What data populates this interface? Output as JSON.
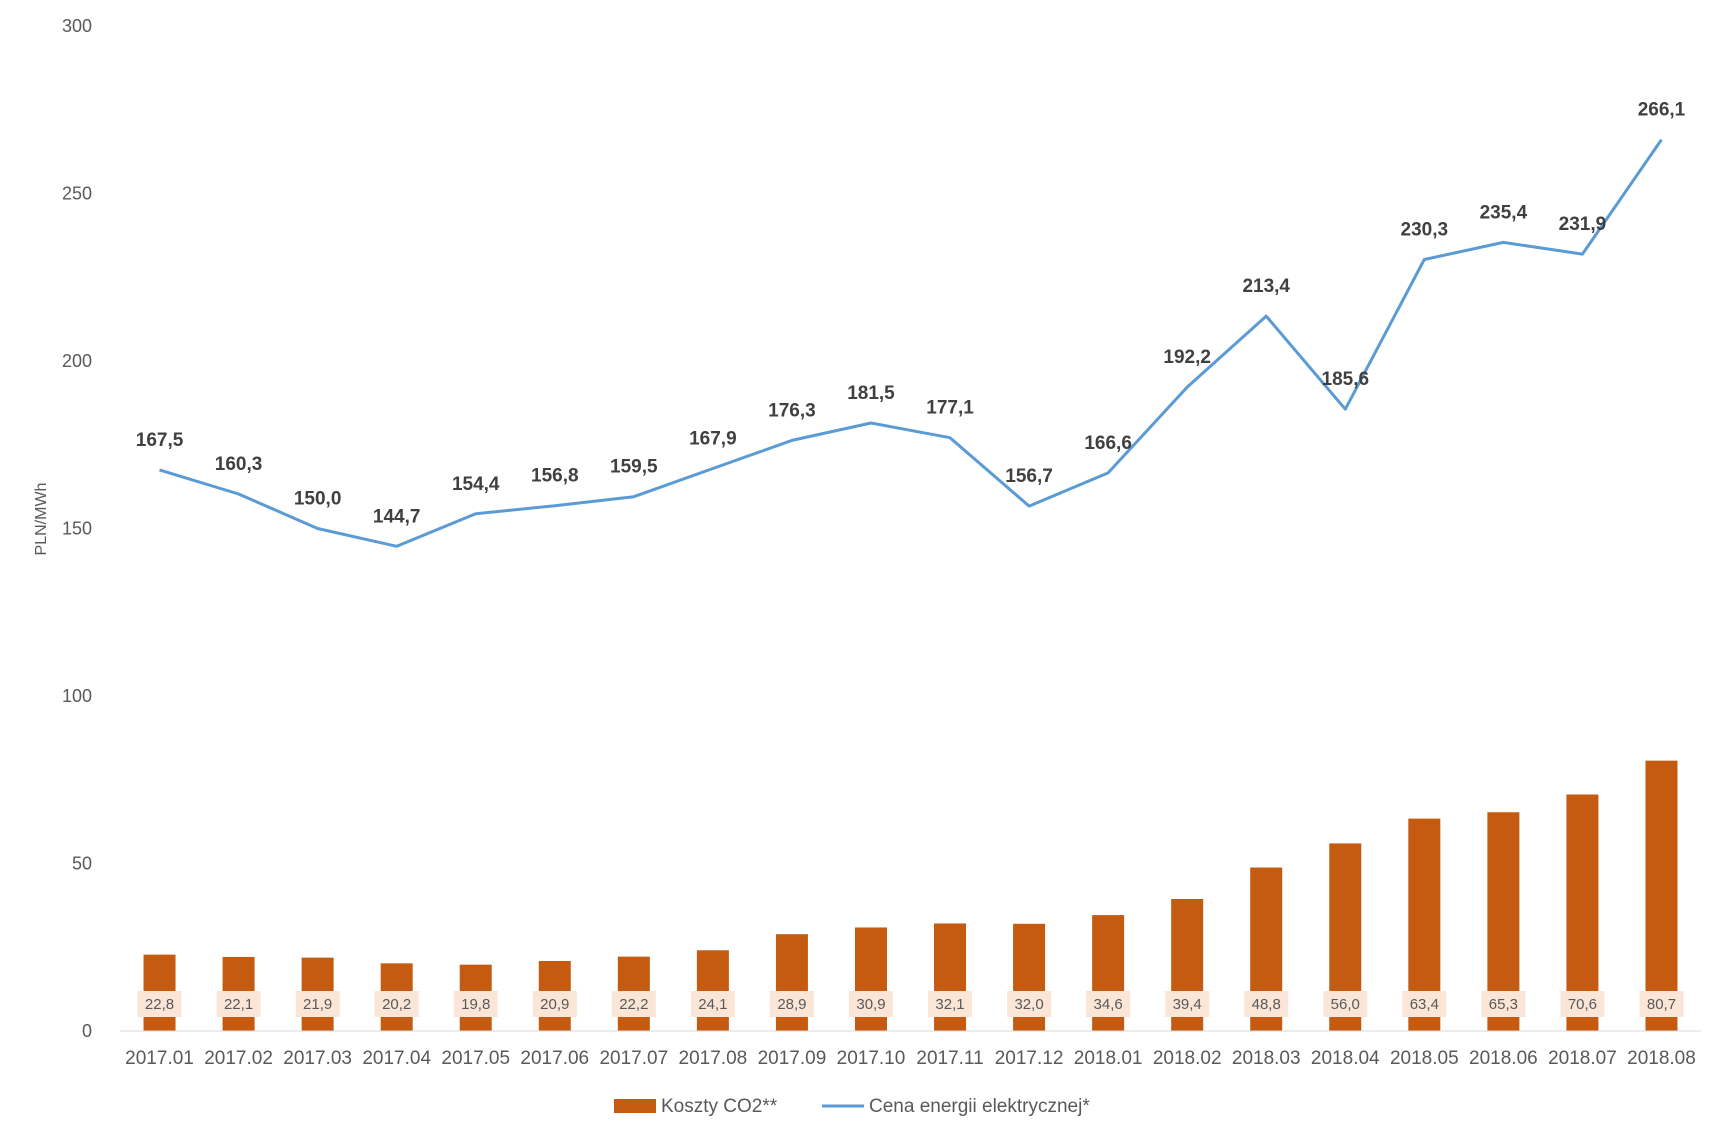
{
  "chart_data": {
    "type": "bar+line",
    "title": "",
    "xlabel": "",
    "ylabel": "PLN/MWh",
    "ylim": [
      0,
      300
    ],
    "yticks": [
      0,
      50,
      100,
      150,
      200,
      250,
      300
    ],
    "grid": false,
    "legend_position": "bottom",
    "categories": [
      "2017.01",
      "2017.02",
      "2017.03",
      "2017.04",
      "2017.05",
      "2017.06",
      "2017.07",
      "2017.08",
      "2017.09",
      "2017.10",
      "2017.11",
      "2017.12",
      "2018.01",
      "2018.02",
      "2018.03",
      "2018.04",
      "2018.05",
      "2018.06",
      "2018.07",
      "2018.08"
    ],
    "series": [
      {
        "name": "Koszty CO2**",
        "type": "bar",
        "color": "#C55A11",
        "label_bg": "#FBE5D6",
        "values": [
          22.8,
          22.1,
          21.9,
          20.2,
          19.8,
          20.9,
          22.2,
          24.1,
          28.9,
          30.9,
          32.1,
          32.0,
          34.6,
          39.4,
          48.8,
          56.0,
          63.4,
          65.3,
          70.6,
          80.7
        ],
        "labels": [
          "22,8",
          "22,1",
          "21,9",
          "20,2",
          "19,8",
          "20,9",
          "22,2",
          "24,1",
          "28,9",
          "30,9",
          "32,1",
          "32,0",
          "34,6",
          "39,4",
          "48,8",
          "56,0",
          "63,4",
          "65,3",
          "70,6",
          "80,7"
        ]
      },
      {
        "name": "Cena energii elektrycznej*",
        "type": "line",
        "color": "#5B9BD5",
        "values": [
          167.5,
          160.3,
          150.0,
          144.7,
          154.4,
          156.8,
          159.5,
          167.9,
          176.3,
          181.5,
          177.1,
          156.7,
          166.6,
          192.2,
          213.4,
          185.6,
          230.3,
          235.4,
          231.9,
          266.1
        ],
        "labels": [
          "167,5",
          "160,3",
          "150,0",
          "144,7",
          "154,4",
          "156,8",
          "159,5",
          "167,9",
          "176,3",
          "181,5",
          "177,1",
          "156,7",
          "166,6",
          "192,2",
          "213,4",
          "185,6",
          "230,3",
          "235,4",
          "231,9",
          "266,1"
        ]
      }
    ]
  }
}
